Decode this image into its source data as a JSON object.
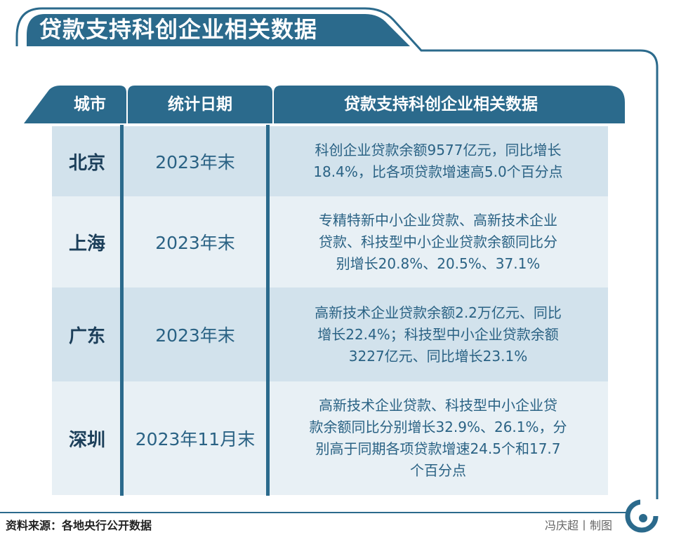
{
  "title": "贷款支持科创企业相关数据",
  "table": {
    "headers": [
      "城市",
      "统计日期",
      "贷款支持科创企业相关数据"
    ],
    "rows": [
      {
        "city": "北京",
        "date": "2023年末",
        "desc": [
          "科创企业贷款余额9577亿元，同比增长",
          "18.4%，比各项贷款增速高5.0个百分点"
        ]
      },
      {
        "city": "上海",
        "date": "2023年末",
        "desc": [
          "专精特新中小企业贷款、高新技术企业",
          "贷款、科技型中小企业贷款余额同比分",
          "别增长20.8%、20.5%、37.1%"
        ]
      },
      {
        "city": "广东",
        "date": "2023年末",
        "desc": [
          "高新技术企业贷款余额2.2万亿元、同比",
          "增长22.4%；科技型中小企业贷款余额",
          "3227亿元、同比增长23.1%"
        ]
      },
      {
        "city": "深圳",
        "date": "2023年11月末",
        "desc": [
          "高新技术企业贷款、科技型中小企业贷",
          "款余额同比分别增长32.9%、26.1%，分",
          "别高于同期各项贷款增速24.5个和17.7",
          "个百分点"
        ]
      }
    ]
  },
  "footer": {
    "source": "资料来源：各地央行公开数据",
    "credit": "冯庆超丨制图"
  },
  "colors": {
    "primary": "#2b6a8c",
    "outline": "#2b6a8c",
    "row_shade": "#d2e2ec",
    "row_light": "#e8f0f5"
  }
}
